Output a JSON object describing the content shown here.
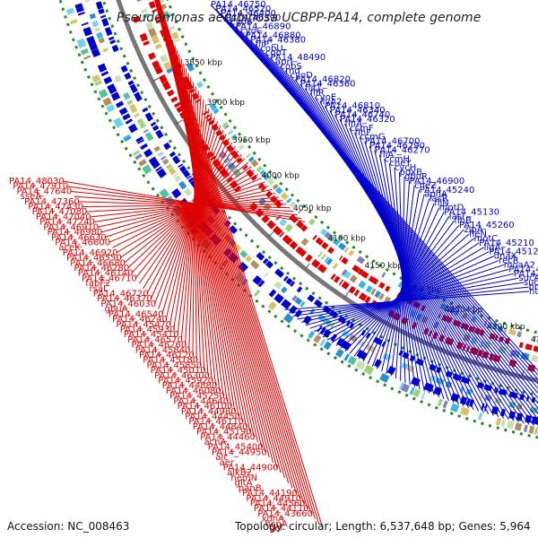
{
  "title": "Pseudomonas aeruginosa UCBPP-PA14, complete genome",
  "footer": {
    "accession": "Accession: NC_008463",
    "topology": "Topology: circular; Length: 6,537,648 bp; Genes: 5,964"
  },
  "scale_labels": [
    "4350 kbp",
    "4300 kbp",
    "4250 kbp",
    "4200 kbp",
    "4150 kbp",
    "4100 kbp",
    "4050 kbp",
    "4000 kbp",
    "3950 kbp",
    "3900 kbp",
    "3850 kbp"
  ],
  "colors": {
    "forward": "#0000cc",
    "reverse": "#dd0000",
    "backbone": "#777777",
    "dots": "#228b22"
  },
  "blue_labels": [
    "PA14_46750",
    "PA14_46520",
    "PA14_46400",
    "PA14_46390",
    "cyoB",
    "PA14_46890",
    "cyoC",
    "PA14_46880",
    "PA14_46380",
    "fliP",
    "cobU",
    "cobT",
    "PA14_48490",
    "aprI",
    "cobS",
    "rnd",
    "cyoD",
    "PA14_46820",
    "PA14_46360",
    "fliQ",
    "fliR",
    "cyoE",
    "ilvA2",
    "PA14_46810",
    "PA14_46340",
    "PA14_46740",
    "PA14_46320",
    "flhA",
    "ccmF",
    "flhF",
    "ccmG",
    "PA14_46700",
    "PA14_46290",
    "PA14_46270",
    "fliA",
    "ccmH",
    "cheY",
    "cycH",
    "pdxB",
    "gbuR",
    "PA14_46900",
    "cheZ",
    "PA14_45240",
    "aphA",
    "lasR",
    "fliN",
    "motD",
    "PA14_45130",
    "lasI",
    "flhB",
    "PA14_45260",
    "zipA",
    "fleN",
    "motC",
    "PA14_45210",
    "ligA",
    "PA14_45120",
    "dnaX",
    "recR",
    "moaA2",
    "PA14_44480",
    "PA14_44590",
    "sucA",
    "sucD",
    "braB",
    "htpG"
  ],
  "red_labels": [
    "PA14_48030",
    "PA14_47910",
    "PA14_47640",
    "sseA",
    "PA14_47360",
    "PA14_47430",
    "PA14_47080",
    "PA14_47040",
    "PA14_47240",
    "PA14_46910",
    "PA14_46980",
    "PA14_46630",
    "PA14_46600",
    "aceK",
    "PA14_46920",
    "PA14_46550",
    "PA14_46680",
    "PA14_46280",
    "PA14_46140",
    "PA14_46710",
    "fabF2",
    "rsaL",
    "PA14_46720",
    "PA14_46370",
    "PA14_46030",
    "gbuA",
    "PA14_46540",
    "PA14_46240",
    "PA14_45470",
    "PA14_45930",
    "PA14_45410",
    "PA14_46570",
    "PA14_46260",
    "PA14_45840",
    "PA14_46120",
    "PA14_45180",
    "PA14_45850",
    "PA14_45010",
    "PA14_46300",
    "PA14_45920",
    "PA14_44880",
    "PA14_46080",
    "PA14_45250",
    "PA14_44640",
    "PA14_46100",
    "PA14_44980",
    "PA14_44450",
    "PA14_46110",
    "PA14_44840",
    "PA14_45190",
    "PA14_44460",
    "acnA",
    "PA14_45400",
    "PA14_44950",
    "alc",
    "aer",
    "PA14_44900",
    "alkB2",
    "hemN",
    "gltA",
    "panB",
    "PA14_44190",
    "PA14_44910",
    "PA14_44560",
    "PA14_44110",
    "PA14_43660",
    "xdhA",
    "hcpA",
    "gcl"
  ]
}
